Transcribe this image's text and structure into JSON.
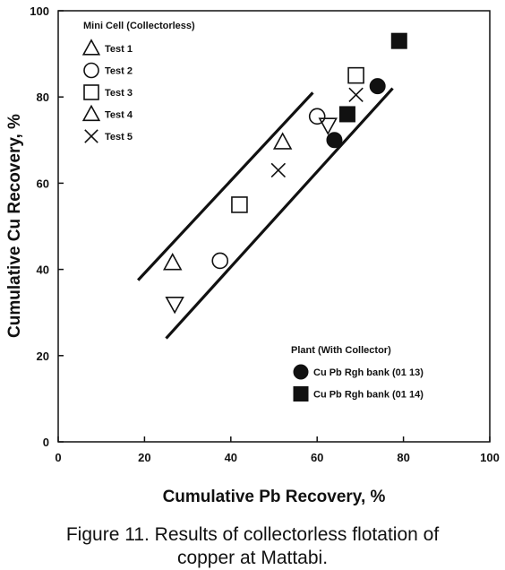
{
  "chart_data": {
    "type": "scatter",
    "xlabel": "Cumulative Pb Recovery, %",
    "ylabel": "Cumulative Cu Recovery, %",
    "xlim": [
      0,
      100
    ],
    "ylim": [
      0,
      100
    ],
    "xticks": [
      0,
      20,
      40,
      60,
      80,
      100
    ],
    "yticks": [
      0,
      20,
      40,
      60,
      80,
      100
    ],
    "grid": false,
    "legend_groups": [
      {
        "title": "Mini Cell (Collectorless)",
        "placement": "top-left",
        "entries": [
          {
            "name": "Test 1",
            "marker": "triangle-up"
          },
          {
            "name": "Test 2",
            "marker": "circle-open"
          },
          {
            "name": "Test 3",
            "marker": "square-open"
          },
          {
            "name": "Test 4",
            "marker": "triangle-up"
          },
          {
            "name": "Test 5",
            "marker": "x"
          }
        ]
      },
      {
        "title": "Plant (With Collector)",
        "placement": "bottom-right",
        "entries": [
          {
            "name": "Cu  Pb Rgh bank (01  13)",
            "marker": "circle-filled"
          },
          {
            "name": "Cu  Pb Rgh bank (01  14)",
            "marker": "square-filled"
          }
        ]
      }
    ],
    "series": [
      {
        "marker": "triangle-up",
        "points": [
          [
            26.5,
            41.5
          ],
          [
            52,
            69.5
          ]
        ]
      },
      {
        "marker": "triangle-down",
        "points": [
          [
            27,
            32
          ],
          [
            62.5,
            73.5
          ]
        ]
      },
      {
        "marker": "circle-open",
        "points": [
          [
            37.5,
            42
          ],
          [
            60,
            75.5
          ]
        ]
      },
      {
        "marker": "square-open",
        "points": [
          [
            42,
            55
          ],
          [
            69,
            85
          ]
        ]
      },
      {
        "marker": "x",
        "points": [
          [
            51,
            63
          ],
          [
            69,
            80.5
          ]
        ]
      },
      {
        "marker": "circle-filled",
        "points": [
          [
            64,
            70
          ],
          [
            74,
            82.5
          ]
        ]
      },
      {
        "marker": "square-filled",
        "points": [
          [
            67,
            76
          ],
          [
            79,
            93
          ]
        ]
      }
    ],
    "band_lines": [
      {
        "points": [
          [
            18.5,
            37.5
          ],
          [
            59,
            81
          ]
        ]
      },
      {
        "points": [
          [
            25,
            24
          ],
          [
            77.5,
            82
          ]
        ]
      }
    ],
    "colors": {
      "ink": "#111111",
      "background": "#ffffff"
    }
  },
  "caption": {
    "line1": "Figure 11.  Results of collectorless flotation of",
    "line2": "copper at Mattabi."
  }
}
